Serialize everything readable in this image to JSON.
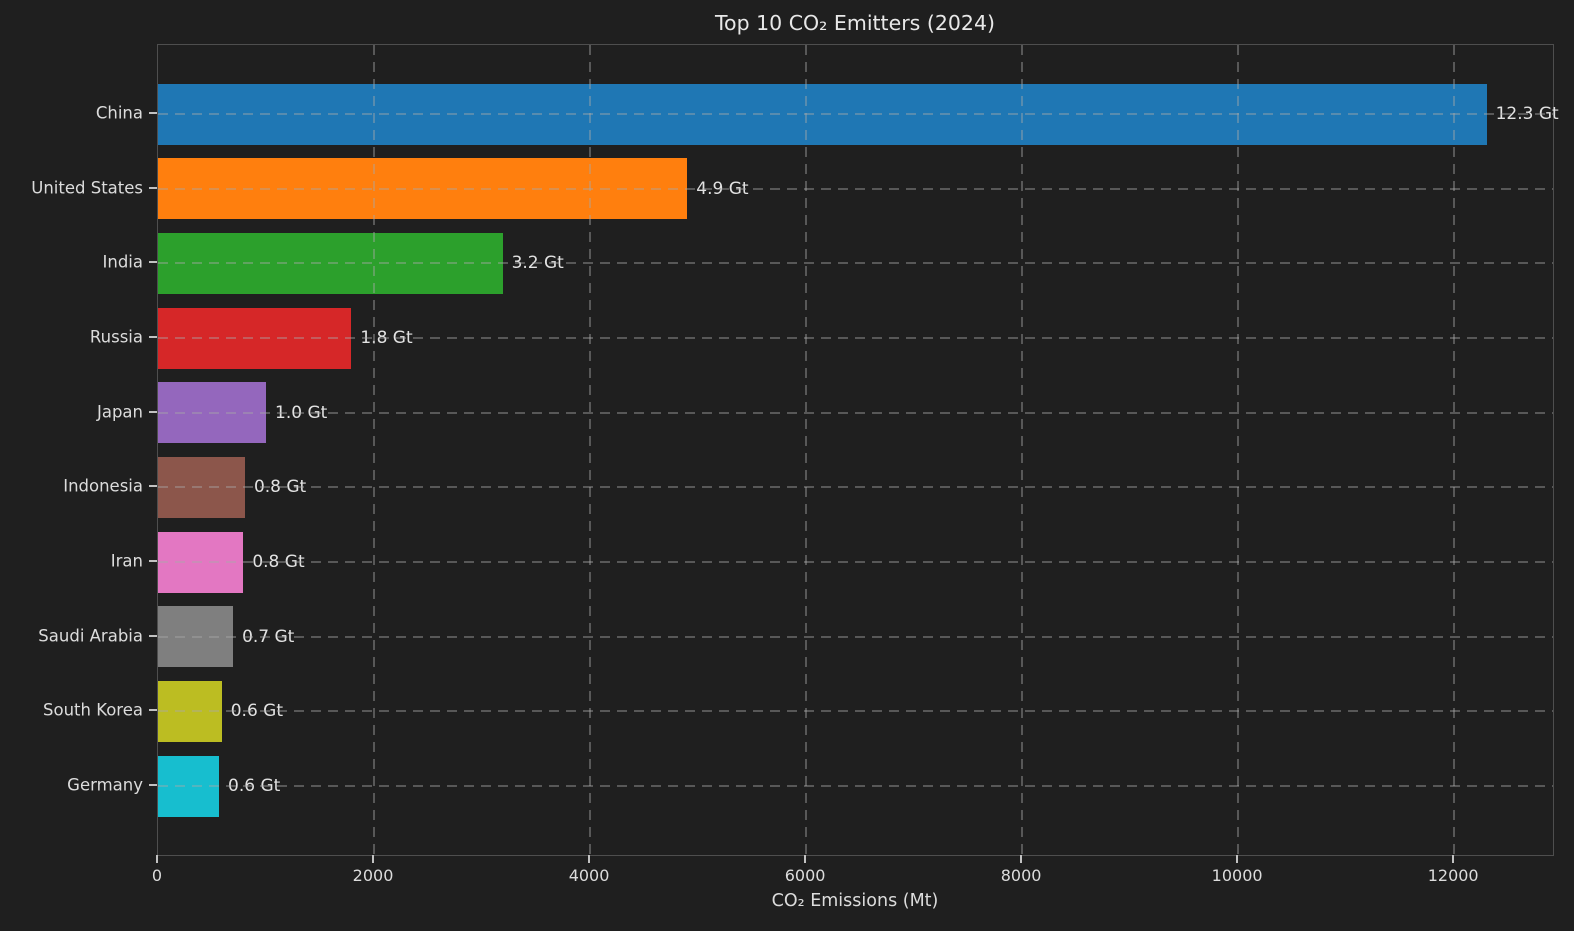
{
  "chart_data": {
    "type": "bar",
    "orientation": "horizontal",
    "title": "Top 10 CO₂ Emitters (2024)",
    "xlabel": "CO₂ Emissions (Mt)",
    "ylabel": "",
    "legend": "none",
    "grid": {
      "axis": "both",
      "style": "dashed",
      "above_bars": true
    },
    "background_color": "#1f1f1f",
    "text_color": "#dcdcdc",
    "spine_color": "#4e4e4e",
    "xlim": [
      0,
      12915
    ],
    "xticks": [
      0,
      2000,
      4000,
      6000,
      8000,
      10000,
      12000
    ],
    "categories": [
      "China",
      "United States",
      "India",
      "Russia",
      "Japan",
      "Indonesia",
      "Iran",
      "Saudi Arabia",
      "South Korea",
      "Germany"
    ],
    "values_mt": [
      12300,
      4900,
      3190,
      1790,
      1000,
      805,
      790,
      695,
      590,
      565
    ],
    "bar_labels": [
      "12.3 Gt",
      "4.9 Gt",
      "3.2 Gt",
      "1.8 Gt",
      "1.0 Gt",
      "0.8 Gt",
      "0.8 Gt",
      "0.7 Gt",
      "0.6 Gt",
      "0.6 Gt"
    ],
    "bar_colors": [
      "#1f77b4",
      "#ff7f0e",
      "#2ca02c",
      "#d62728",
      "#9467bd",
      "#8c564b",
      "#e377c2",
      "#7f7f7f",
      "#bcbd22",
      "#17becf"
    ]
  }
}
